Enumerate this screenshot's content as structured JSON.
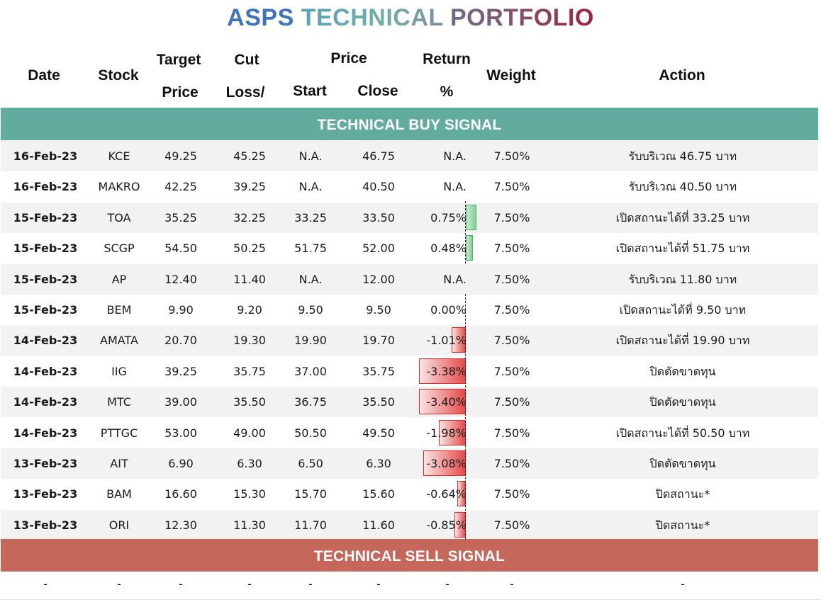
{
  "title": {
    "part1": "ASPS",
    "part2": "TECHNICAL",
    "part3": "PORTFOLIO"
  },
  "headers": {
    "date": "Date",
    "stock": "Stock",
    "target_l1": "Target",
    "target_l2": "Price",
    "cut_l1": "Cut",
    "cut_l2": "Loss/",
    "price": "Price",
    "start": "Start",
    "close": "Close",
    "return_l1": "Return",
    "return_l2": "%",
    "weight": "Weight",
    "action": "Action"
  },
  "buy_signal_label": "TECHNICAL BUY SIGNAL",
  "sell_signal_label": "TECHNICAL SELL SIGNAL",
  "colors": {
    "buy_band": "#62ab9f",
    "sell_band": "#c5675a",
    "positive_bar": "#7fcf93",
    "negative_bar": "#e64a4a"
  },
  "rows": [
    {
      "date": "16-Feb-23",
      "stock": "KCE",
      "target": "49.25",
      "cut": "45.25",
      "start": "N.A.",
      "close": "46.75",
      "ret": "N.A.",
      "ret_value": null,
      "weight": "7.50%",
      "action": "รับบริเวณ 46.75 บาท"
    },
    {
      "date": "16-Feb-23",
      "stock": "MAKRO",
      "target": "42.25",
      "cut": "39.25",
      "start": "N.A.",
      "close": "40.50",
      "ret": "N.A.",
      "ret_value": null,
      "weight": "7.50%",
      "action": "รับบริเวณ 40.50 บาท"
    },
    {
      "date": "15-Feb-23",
      "stock": "TOA",
      "target": "35.25",
      "cut": "32.25",
      "start": "33.25",
      "close": "33.50",
      "ret": "0.75%",
      "ret_value": 0.75,
      "weight": "7.50%",
      "action": "เปิดสถานะได้ที่ 33.25 บาท"
    },
    {
      "date": "15-Feb-23",
      "stock": "SCGP",
      "target": "54.50",
      "cut": "50.25",
      "start": "51.75",
      "close": "52.00",
      "ret": "0.48%",
      "ret_value": 0.48,
      "weight": "7.50%",
      "action": "เปิดสถานะได้ที่ 51.75 บาท"
    },
    {
      "date": "15-Feb-23",
      "stock": "AP",
      "target": "12.40",
      "cut": "11.40",
      "start": "N.A.",
      "close": "12.00",
      "ret": "N.A.",
      "ret_value": null,
      "weight": "7.50%",
      "action": "รับบริเวณ 11.80 บาท"
    },
    {
      "date": "15-Feb-23",
      "stock": "BEM",
      "target": "9.90",
      "cut": "9.20",
      "start": "9.50",
      "close": "9.50",
      "ret": "0.00%",
      "ret_value": 0.0,
      "weight": "7.50%",
      "action": "เปิดสถานะได้ที่ 9.50 บาท"
    },
    {
      "date": "14-Feb-23",
      "stock": "AMATA",
      "target": "20.70",
      "cut": "19.30",
      "start": "19.90",
      "close": "19.70",
      "ret": "-1.01%",
      "ret_value": -1.01,
      "weight": "7.50%",
      "action": "เปิดสถานะได้ที่ 19.90 บาท"
    },
    {
      "date": "14-Feb-23",
      "stock": "IIG",
      "target": "39.25",
      "cut": "35.75",
      "start": "37.00",
      "close": "35.75",
      "ret": "-3.38%",
      "ret_value": -3.38,
      "weight": "7.50%",
      "action": "ปิดตัดขาดทุน"
    },
    {
      "date": "14-Feb-23",
      "stock": "MTC",
      "target": "39.00",
      "cut": "35.50",
      "start": "36.75",
      "close": "35.50",
      "ret": "-3.40%",
      "ret_value": -3.4,
      "weight": "7.50%",
      "action": "ปิดตัดขาดทุน"
    },
    {
      "date": "14-Feb-23",
      "stock": "PTTGC",
      "target": "53.00",
      "cut": "49.00",
      "start": "50.50",
      "close": "49.50",
      "ret": "-1.98%",
      "ret_value": -1.98,
      "weight": "7.50%",
      "action": "เปิดสถานะได้ที่ 50.50 บาท"
    },
    {
      "date": "13-Feb-23",
      "stock": "AIT",
      "target": "6.90",
      "cut": "6.30",
      "start": "6.50",
      "close": "6.30",
      "ret": "-3.08%",
      "ret_value": -3.08,
      "weight": "7.50%",
      "action": "ปิดตัดขาดทุน"
    },
    {
      "date": "13-Feb-23",
      "stock": "BAM",
      "target": "16.60",
      "cut": "15.30",
      "start": "15.70",
      "close": "15.60",
      "ret": "-0.64%",
      "ret_value": -0.64,
      "weight": "7.50%",
      "action": "ปิดสถานะ*"
    },
    {
      "date": "13-Feb-23",
      "stock": "ORI",
      "target": "12.30",
      "cut": "11.30",
      "start": "11.70",
      "close": "11.60",
      "ret": "-0.85%",
      "ret_value": -0.85,
      "weight": "7.50%",
      "action": "ปิดสถานะ*"
    }
  ],
  "sell_rows": [
    {
      "date": "-",
      "stock": "-",
      "target": "-",
      "cut": "-",
      "start": "-",
      "close": "-",
      "ret": "-",
      "weight": "-",
      "action": "-"
    }
  ]
}
